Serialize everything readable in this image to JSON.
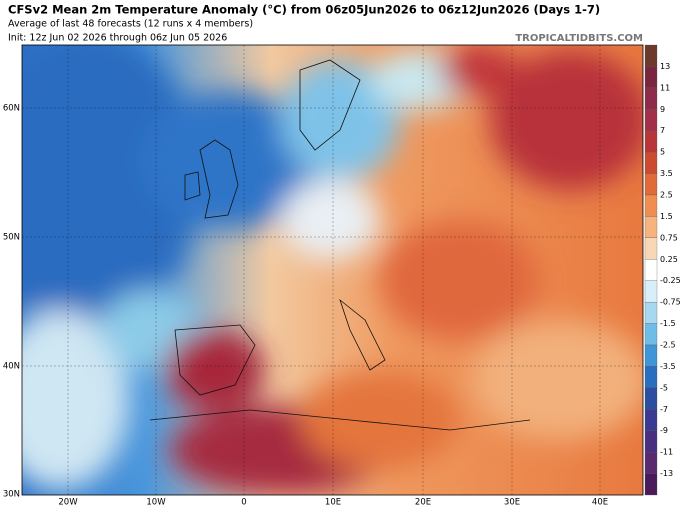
{
  "header": {
    "title": "CFSv2 Mean 2m Temperature Anomaly (°C) from 06z05Jun2026 to 06z12Jun2026 (Days 1-7)",
    "subtitle": "Average of last 48 forecasts (12 runs x 4 members)",
    "init": "Init: 12z Jun 02 2026 through 06z Jun 05 2026",
    "credit": "TROPICALTIDBITS.COM"
  },
  "map": {
    "lat_labels": [
      "60N",
      "50N",
      "40N",
      "30N"
    ],
    "lon_labels": [
      "20W",
      "10W",
      "0",
      "10E",
      "20E",
      "30E",
      "40E"
    ]
  },
  "colorbar": {
    "labels": [
      "13",
      "11",
      "9",
      "7",
      "5",
      "3.5",
      "2.5",
      "1.5",
      "0.75",
      "0.25",
      "-0.25",
      "-0.75",
      "-1.5",
      "-2.5",
      "-3.5",
      "-5",
      "-7",
      "-9",
      "-11",
      "-13"
    ]
  }
}
